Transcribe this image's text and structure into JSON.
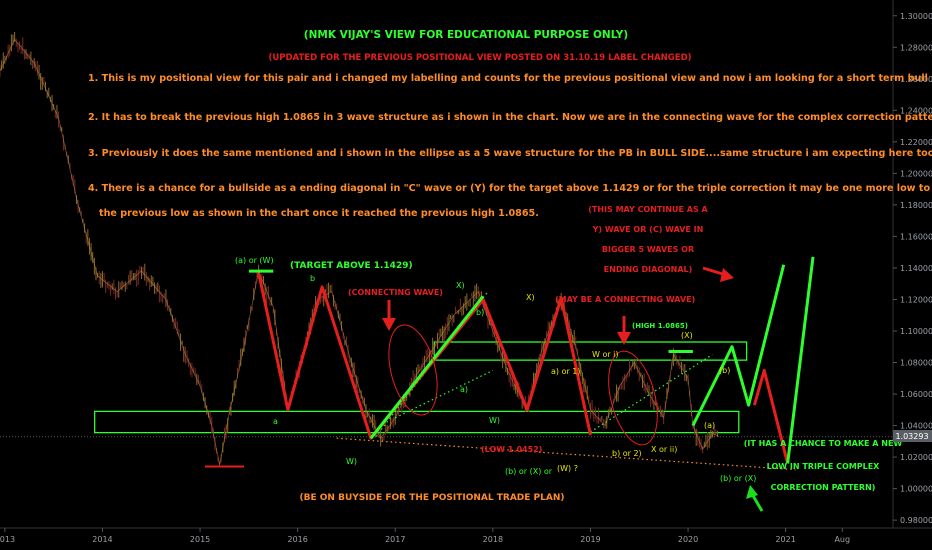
{
  "colors": {
    "background": "#000000",
    "green": "#19e019",
    "light_green": "#2dff2d",
    "red": "#e61e1e",
    "orange": "#ff8c28",
    "yellow": "#e6e600",
    "price_tag": "#5a5f66"
  },
  "header": {
    "title": "(NMK VIJAY'S VIEW FOR EDUCATIONAL PURPOSE ONLY)",
    "subtitle": "(UPDATED FOR THE PREVIOUS POSITIONAL VIEW POSTED ON 31.10.19 LABEL CHANGED)"
  },
  "notes": [
    "1. This is my positional view for this pair and i changed my labelling and counts for the previous positional view and now i am looking for a short term bull side.",
    "2. It has to break the previous high 1.0865 in 3 wave structure as i shown in the chart. Now we are in the connecting wave for the complex correction pattern.",
    "3. Previously it does the same mentioned and i shown in the ellipse as a 5 wave structure for the PB in BULL SIDE....same structure i am expecting here too.",
    "4. There is a chance for a bullside as a ending diagonal in \"C\" wave or (Y) for the target above 1.1429 or for the triple correction it may be one more low to break",
    "the previous low as shown in the chart once it reached the previous high 1.0865."
  ],
  "annotations": {
    "target": "(TARGET ABOVE 1.1429)",
    "connecting_wave_1": "(CONNECTING WAVE)",
    "connecting_wave_2": "(MAY BE A CONNECTING WAVE)",
    "continue_lines": [
      "(THIS MAY CONTINUE AS A",
      "Y) WAVE OR (C) WAVE IN",
      "BIGGER 5 WAVES OR",
      "ENDING DIAGONAL)"
    ],
    "high_label": "(HIGH 1.0865)",
    "low_label": "(LOW 1.0452)",
    "new_low_lines": [
      "(IT HAS A CHANCE TO MAKE A NEW",
      "LOW IN TRIPLE COMPLEX",
      "CORRECTION PATTERN)"
    ],
    "buyside": "(BE ON BUYSIDE FOR THE POSITIONAL TRADE PLAN)"
  },
  "wave_labels": {
    "a_or_w": "(a) or (W)",
    "b_top": "b",
    "a_mid": "a",
    "w_low": "W)",
    "x_top": "X)",
    "b_mid": "b)",
    "a_green": "a)",
    "w_mid": "W)",
    "x_top2": "X)",
    "b_or_x": "(b) or (X) or",
    "w_q": "(W) ?",
    "a_or_1": "a) or 1)",
    "b_or_2": "b) or 2)",
    "w_or_i": "W or i)",
    "x_or_ii": "X or ii)",
    "big_x": "(X)",
    "small_a": "(a)",
    "small_b": "(b)",
    "b_or_x2": "(b) or (X)"
  },
  "current_price": "1.03293",
  "chart_data": {
    "type": "line",
    "title": "",
    "xlabel": "",
    "ylabel": "",
    "ylim": [
      0.975,
      1.31
    ],
    "xlim": [
      2012.95,
      2022.1
    ],
    "grid": false,
    "y_ticks": [
      "1.30000",
      "1.28000",
      "1.26000",
      "1.24000",
      "1.22000",
      "1.20000",
      "1.18000",
      "1.16000",
      "1.14000",
      "1.12000",
      "1.10000",
      "1.08000",
      "1.06000",
      "1.04000",
      "1.02000",
      "1.00000",
      "0.98000"
    ],
    "x_ticks": [
      {
        "label": "2013",
        "x": 2013.0
      },
      {
        "label": "2014",
        "x": 2014.0
      },
      {
        "label": "2015",
        "x": 2015.0
      },
      {
        "label": "2016",
        "x": 2016.0
      },
      {
        "label": "2017",
        "x": 2017.0
      },
      {
        "label": "2018",
        "x": 2018.0
      },
      {
        "label": "2019",
        "x": 2019.0
      },
      {
        "label": "2020",
        "x": 2020.0
      },
      {
        "label": "2021",
        "x": 2021.0
      },
      {
        "label": "Aug",
        "x": 2021.58
      }
    ],
    "price_path": [
      [
        2012.95,
        1.265
      ],
      [
        2013.1,
        1.285
      ],
      [
        2013.3,
        1.27
      ],
      [
        2013.55,
        1.235
      ],
      [
        2013.75,
        1.18
      ],
      [
        2013.95,
        1.135
      ],
      [
        2014.15,
        1.125
      ],
      [
        2014.4,
        1.138
      ],
      [
        2014.65,
        1.12
      ],
      [
        2014.85,
        1.085
      ],
      [
        2015.0,
        1.065
      ],
      [
        2015.12,
        1.04
      ],
      [
        2015.2,
        1.015
      ],
      [
        2015.3,
        1.048
      ],
      [
        2015.45,
        1.09
      ],
      [
        2015.6,
        1.138
      ],
      [
        2015.75,
        1.115
      ],
      [
        2015.9,
        1.05
      ],
      [
        2016.05,
        1.085
      ],
      [
        2016.2,
        1.12
      ],
      [
        2016.35,
        1.125
      ],
      [
        2016.55,
        1.08
      ],
      [
        2016.7,
        1.05
      ],
      [
        2016.85,
        1.032
      ],
      [
        2017.0,
        1.045
      ],
      [
        2017.2,
        1.07
      ],
      [
        2017.4,
        1.09
      ],
      [
        2017.6,
        1.11
      ],
      [
        2017.85,
        1.125
      ],
      [
        2018.0,
        1.1
      ],
      [
        2018.15,
        1.075
      ],
      [
        2018.35,
        1.05
      ],
      [
        2018.5,
        1.088
      ],
      [
        2018.7,
        1.12
      ],
      [
        2018.85,
        1.09
      ],
      [
        2019.0,
        1.05
      ],
      [
        2019.15,
        1.04
      ],
      [
        2019.3,
        1.065
      ],
      [
        2019.45,
        1.08
      ],
      [
        2019.6,
        1.06
      ],
      [
        2019.75,
        1.045
      ],
      [
        2019.85,
        1.085
      ],
      [
        2020.0,
        1.07
      ],
      [
        2020.05,
        1.04
      ],
      [
        2020.15,
        1.025
      ],
      [
        2020.25,
        1.035
      ],
      [
        2020.32,
        1.0329
      ]
    ],
    "rect_zones": [
      {
        "x0": 2013.92,
        "x1": 2020.52,
        "y0": 1.0355,
        "y1": 1.049
      },
      {
        "x0": 2017.4,
        "x1": 2020.6,
        "y0": 1.0815,
        "y1": 1.093
      }
    ],
    "red_zigzag": [
      [
        2015.6,
        1.137
      ],
      [
        2015.9,
        1.05
      ],
      [
        2016.25,
        1.128
      ],
      [
        2016.75,
        1.032
      ],
      [
        2017.9,
        1.12
      ],
      [
        2018.35,
        1.05
      ],
      [
        2018.7,
        1.121
      ],
      [
        2019.0,
        1.034
      ]
    ],
    "green_impulse": [
      [
        2016.75,
        1.032
      ],
      [
        2017.9,
        1.122
      ]
    ],
    "green_projection": [
      [
        2020.05,
        1.04
      ],
      [
        2020.45,
        1.09
      ],
      [
        2020.62,
        1.053
      ],
      [
        2020.98,
        1.142
      ]
    ],
    "red_projection": [
      [
        2020.68,
        1.053
      ],
      [
        2020.78,
        1.075
      ],
      [
        2021.02,
        1.016
      ]
    ],
    "green_final": [
      [
        2021.02,
        1.016
      ],
      [
        2021.28,
        1.147
      ]
    ],
    "dotted_lower": [
      [
        2016.4,
        1.032
      ],
      [
        2021.1,
        1.012
      ]
    ],
    "dotted_channel_1": [
      [
        2016.8,
        1.033
      ],
      [
        2017.95,
        1.125
      ]
    ],
    "dotted_channel_2": [
      [
        2017.0,
        1.045
      ],
      [
        2018.0,
        1.075
      ]
    ],
    "dotted_channel_3": [
      [
        2019.0,
        1.036
      ],
      [
        2020.25,
        1.085
      ]
    ],
    "red_support": [
      [
        2015.05,
        1.014
      ],
      [
        2015.45,
        1.014
      ]
    ],
    "green_top": [
      [
        2015.5,
        1.138
      ],
      [
        2015.75,
        1.138
      ]
    ],
    "high_marker": [
      [
        2019.8,
        1.087
      ],
      [
        2020.05,
        1.087
      ]
    ],
    "current_price": 1.03293
  }
}
